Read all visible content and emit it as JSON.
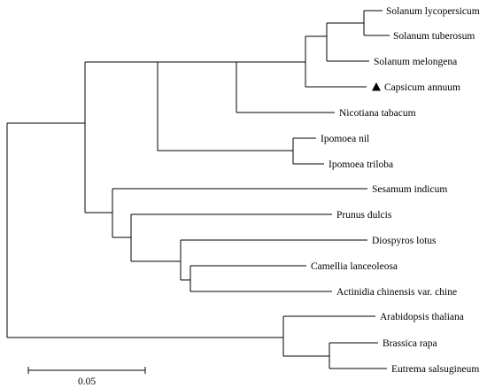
{
  "tree": {
    "taxa": [
      "Solanum lycopersicum",
      "Solanum tuberosum",
      "Solanum melongena",
      "Capsicum annuum",
      "Nicotiana tabacum",
      "Ipomoea nil",
      "Ipomoea triloba",
      "Sesamum indicum",
      "Prunus dulcis",
      "Diospyros lotus",
      "Camellia lanceoleosa",
      "Actinidia chinensis var. chine",
      "Arabidopsis thaliana",
      "Brassica rapa",
      "Eutrema salsugineum"
    ],
    "marked_taxon": "Capsicum annuum",
    "marker_icon": "black-triangle-icon",
    "branch_color": "#000000"
  },
  "scale_bar": {
    "label": "0.05"
  }
}
